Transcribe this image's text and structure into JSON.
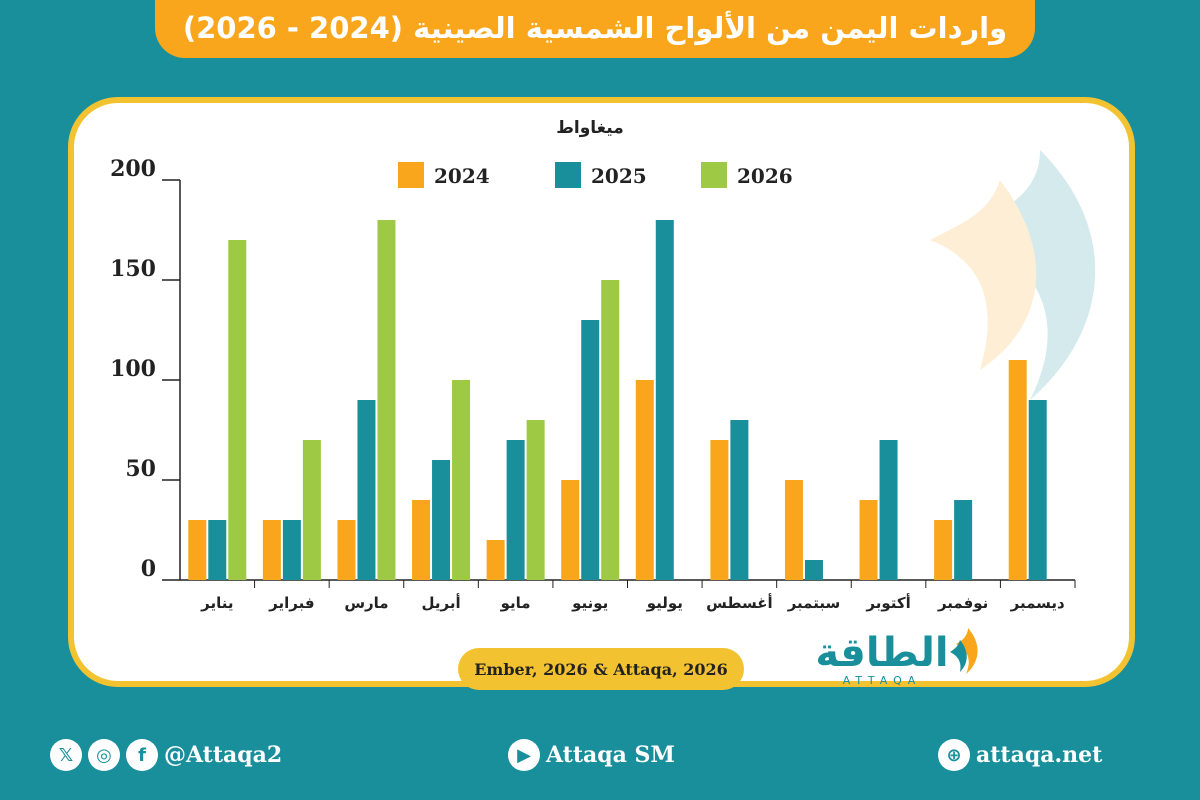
{
  "title": "واردات اليمن من الألواح الشمسية الصينية (2024 - 2026)",
  "source": "Ember, 2026 & Attaqa, 2026",
  "logo": {
    "arabic": "الطاقة",
    "latin": "ATTAQA"
  },
  "footer": {
    "social_handle": "@Attaqa2",
    "youtube": "Attaqa SM",
    "website": "attaqa.net",
    "icons": [
      "x-icon",
      "instagram-icon",
      "facebook-icon",
      "youtube-icon",
      "globe-icon"
    ]
  },
  "colors": {
    "background": "#1a8f9c",
    "accent": "#f9a61d",
    "border": "#f2c230"
  },
  "chart_data": {
    "type": "bar",
    "ylabel": "ميغاواط",
    "ylim": [
      0,
      200
    ],
    "yticks": [
      0,
      50,
      100,
      150,
      200
    ],
    "legend_position": "top-center",
    "categories": [
      "يناير",
      "فبراير",
      "مارس",
      "أبريل",
      "مايو",
      "يونيو",
      "يوليو",
      "أغسطس",
      "سبتمبر",
      "أكتوبر",
      "نوفمبر",
      "ديسمبر"
    ],
    "series": [
      {
        "name": "2024",
        "color": "#f9a61d",
        "values": [
          30,
          30,
          30,
          40,
          20,
          50,
          100,
          70,
          50,
          40,
          30,
          110
        ]
      },
      {
        "name": "2025",
        "color": "#1a8f9c",
        "values": [
          30,
          30,
          90,
          60,
          70,
          130,
          180,
          80,
          10,
          70,
          40,
          90
        ]
      },
      {
        "name": "2026",
        "color": "#9dc944",
        "values": [
          170,
          70,
          180,
          100,
          80,
          150,
          null,
          null,
          null,
          null,
          null,
          null
        ]
      }
    ]
  }
}
